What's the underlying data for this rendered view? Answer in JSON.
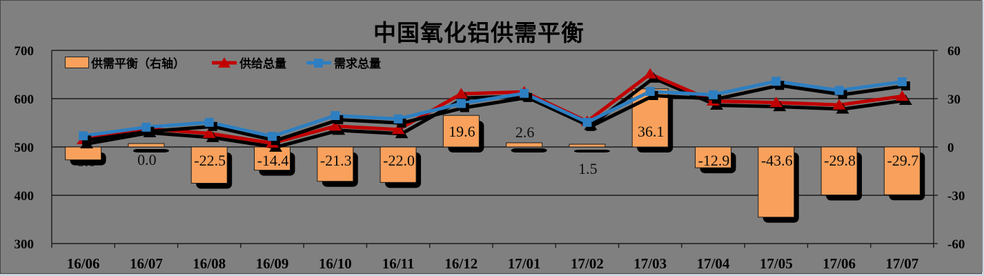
{
  "chart_data": {
    "type": "combo-bar-line",
    "title": "中国氧化铝供需平衡",
    "categories": [
      "16/06",
      "16/07",
      "16/08",
      "16/09",
      "16/10",
      "16/11",
      "16/12",
      "17/01",
      "17/02",
      "17/03",
      "17/04",
      "17/05",
      "17/06",
      "17/07"
    ],
    "series": [
      {
        "name": "供需平衡（右轴）",
        "type": "bar",
        "axis": "right",
        "color": "#F9A15C",
        "values": [
          -8.0,
          0.0,
          -22.5,
          -14.4,
          -21.3,
          -22.0,
          19.6,
          2.6,
          1.5,
          36.1,
          -12.9,
          -43.6,
          -29.8,
          -29.7
        ],
        "labels": [
          "-8.0",
          "0.0",
          "-22.5",
          "-14.4",
          "-21.3",
          "-22.0",
          "19.6",
          "2.6",
          "1.5",
          "36.1",
          "-12.9",
          "-43.6",
          "-29.8",
          "-29.7"
        ],
        "label_placement": [
          "under-shadow",
          "below",
          "in-top",
          "in-top",
          "in-top",
          "in-top",
          "in-mid",
          "above",
          "below-far",
          "in-low",
          "in-top",
          "in-top",
          "in-top",
          "in-top"
        ]
      },
      {
        "name": "供给总量",
        "type": "line",
        "axis": "left",
        "marker": "triangle",
        "color": "#C00000",
        "values": [
          515,
          538,
          528,
          508,
          543,
          536,
          610,
          614,
          553,
          651,
          595,
          592,
          587,
          605
        ]
      },
      {
        "name": "需求总量",
        "type": "line",
        "axis": "left",
        "marker": "square",
        "color": "#2E7FC1",
        "values": [
          523,
          541,
          551,
          522,
          565,
          558,
          590,
          611,
          551,
          615,
          608,
          636,
          617,
          635
        ]
      }
    ],
    "left_axis": {
      "min": 300,
      "max": 700,
      "ticks": [
        "700",
        "600",
        "500",
        "400",
        "300"
      ]
    },
    "right_axis": {
      "min": -60,
      "max": 60,
      "ticks": [
        "60",
        "30",
        "0",
        "-30",
        "-60"
      ]
    },
    "grid": true,
    "legend_position": "top-left",
    "styles": {
      "background": "#808080",
      "shadow": "#000000",
      "gridline": "#1a1a1a",
      "text": "#000000"
    }
  }
}
